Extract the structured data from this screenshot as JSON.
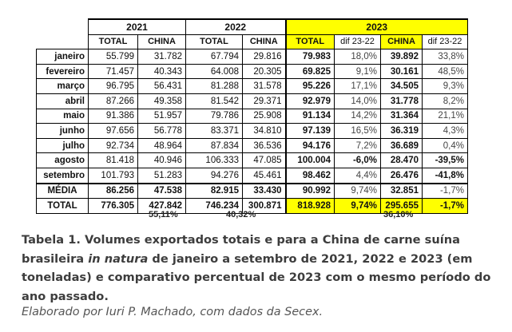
{
  "table": {
    "years": [
      "2021",
      "2022",
      "2023"
    ],
    "headers": {
      "y2021": [
        "TOTAL",
        "CHINA"
      ],
      "y2022": [
        "TOTAL",
        "CHINA"
      ],
      "y2023": [
        "TOTAL",
        "dif 23-22",
        "CHINA",
        "dif 23-22"
      ]
    },
    "rows": [
      {
        "label": "janeiro",
        "t21": "55.799",
        "c21": "31.782",
        "t22": "67.794",
        "c22": "29.816",
        "t23": "79.983",
        "dt": "18,0%",
        "c23": "39.892",
        "dc": "33,8%"
      },
      {
        "label": "fevereiro",
        "t21": "71.457",
        "c21": "40.343",
        "t22": "64.008",
        "c22": "20.305",
        "t23": "69.825",
        "dt": "9,1%",
        "c23": "30.161",
        "dc": "48,5%"
      },
      {
        "label": "março",
        "t21": "96.795",
        "c21": "56.431",
        "t22": "81.288",
        "c22": "31.578",
        "t23": "95.226",
        "dt": "17,1%",
        "c23": "34.505",
        "dc": "9,3%"
      },
      {
        "label": "abril",
        "t21": "87.266",
        "c21": "49.358",
        "t22": "81.542",
        "c22": "29.371",
        "t23": "92.979",
        "dt": "14,0%",
        "c23": "31.778",
        "dc": "8,2%"
      },
      {
        "label": "maio",
        "t21": "91.386",
        "c21": "51.957",
        "t22": "79.786",
        "c22": "25.908",
        "t23": "91.134",
        "dt": "14,2%",
        "c23": "31.364",
        "dc": "21,1%"
      },
      {
        "label": "junho",
        "t21": "97.656",
        "c21": "56.778",
        "t22": "83.371",
        "c22": "34.810",
        "t23": "97.139",
        "dt": "16,5%",
        "c23": "36.319",
        "dc": "4,3%"
      },
      {
        "label": "julho",
        "t21": "92.734",
        "c21": "48.964",
        "t22": "87.834",
        "c22": "36.536",
        "t23": "94.176",
        "dt": "7,2%",
        "c23": "36.689",
        "dc": "0,4%"
      },
      {
        "label": "agosto",
        "t21": "81.418",
        "c21": "40.946",
        "t22": "106.333",
        "c22": "47.085",
        "t23": "100.004",
        "dt": "-6,0%",
        "c23": "28.470",
        "dc": "-39,5%"
      },
      {
        "label": "setembro",
        "t21": "101.793",
        "c21": "51.283",
        "t22": "94.276",
        "c22": "45.461",
        "t23": "98.462",
        "dt": "4,4%",
        "c23": "26.476",
        "dc": "-41,8%"
      }
    ],
    "media": {
      "label": "MÉDIA",
      "t21": "86.256",
      "c21": "47.538",
      "t22": "82.915",
      "c22": "33.430",
      "t23": "90.992",
      "dt": "9,74%",
      "c23": "32.851",
      "dc": "-1,7%"
    },
    "total": {
      "label": "TOTAL",
      "t21": "776.305",
      "c21": "427.842",
      "t22": "746.234",
      "c22": "300.871",
      "t23": "818.928",
      "dt": "9,74%",
      "c23": "295.655",
      "dc": "-1,7%"
    },
    "china_share": {
      "y2021": "55,11%",
      "y2022": "40,32%",
      "y2023": "36,10%"
    }
  },
  "caption": {
    "part1": "Tabela 1. Volumes exportados totais e para a China de carne suína brasileira ",
    "italic": "in natura",
    "part2": " de janeiro a setembro de 2021, 2022 e 2023 (em toneladas) e comparativo percentual de 2023 com o mesmo período do ano passado."
  },
  "credit": "Elaborado por Iuri P. Machado, com dados da Secex.",
  "colors": {
    "highlight": "#ffff00",
    "caption_text": "#3d3d3d",
    "credit_text": "#555555"
  }
}
